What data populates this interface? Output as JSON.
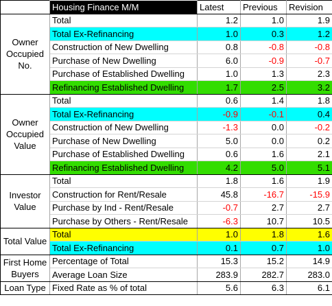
{
  "header": {
    "title": "Housing Finance M/M",
    "col_latest": "Latest",
    "col_previous": "Previous",
    "col_revision": "Revision"
  },
  "groups": {
    "owner_occupied_no": "Owner Occupied No.",
    "owner_occupied_value": "Owner Occupied Value",
    "investor_value": "Investor Value",
    "total_value": "Total Value",
    "first_home_buyers": "First Home Buyers",
    "loan_type": "Loan Type"
  },
  "rows": [
    {
      "label": "Total",
      "latest": "1.2",
      "previous": "1.0",
      "revision": "1.9"
    },
    {
      "label": "Total Ex-Refinancing",
      "latest": "1.0",
      "previous": "0.3",
      "revision": "1.2"
    },
    {
      "label": "Construction of New Dwelling",
      "latest": "0.8",
      "previous": "-0.8",
      "revision": "-0.8"
    },
    {
      "label": "Purchase of New Dwelling",
      "latest": "6.0",
      "previous": "-0.9",
      "revision": "-0.7"
    },
    {
      "label": "Purchase of Established Dwelling",
      "latest": "1.0",
      "previous": "1.3",
      "revision": "2.3"
    },
    {
      "label": "Refinancing Established Dwelling",
      "latest": "1.7",
      "previous": "2.5",
      "revision": "3.2"
    },
    {
      "label": "Total",
      "latest": "0.6",
      "previous": "1.4",
      "revision": "1.8"
    },
    {
      "label": "Total Ex-Refinancing",
      "latest": "-0.9",
      "previous": "-0.1",
      "revision": "0.4"
    },
    {
      "label": "Construction of New Dwelling",
      "latest": "-1.3",
      "previous": "0.0",
      "revision": "-0.2"
    },
    {
      "label": "Purchase of New Dwelling",
      "latest": "5.0",
      "previous": "0.0",
      "revision": "0.2"
    },
    {
      "label": "Purchase of Established Dwelling",
      "latest": "0.6",
      "previous": "1.6",
      "revision": "2.1"
    },
    {
      "label": "Refinancing Established Dwelling",
      "latest": "4.2",
      "previous": "5.0",
      "revision": "5.1"
    },
    {
      "label": "Total",
      "latest": "1.8",
      "previous": "1.6",
      "revision": "1.9"
    },
    {
      "label": "Construction for Rent/Resale",
      "latest": "45.8",
      "previous": "-16.7",
      "revision": "-15.9"
    },
    {
      "label": "Purchase by Ind - Rent/Resale",
      "latest": "-0.7",
      "previous": "2.7",
      "revision": "2.7"
    },
    {
      "label": "Purchase by Others - Rent/Resale",
      "latest": "-6.3",
      "previous": "10.7",
      "revision": "10.5"
    },
    {
      "label": "Total",
      "latest": "1.0",
      "previous": "1.8",
      "revision": "1.6"
    },
    {
      "label": "Total Ex-Refinancing",
      "latest": "0.1",
      "previous": "0.7",
      "revision": "1.0"
    },
    {
      "label": "Percentage of Total",
      "latest": "15.3",
      "previous": "15.2",
      "revision": "14.9"
    },
    {
      "label": "Average Loan Size",
      "latest": "283.9",
      "previous": "282.7",
      "revision": "283.0"
    },
    {
      "label": "Fixed Rate as % of total",
      "latest": "5.6",
      "previous": "6.3",
      "revision": "6.1"
    }
  ],
  "colors": {
    "cyan_highlight": "#00ffff",
    "green_highlight": "#33dd00",
    "yellow_highlight": "#ffff00",
    "negative_text": "#ff0000",
    "header_bg": "#000000"
  }
}
